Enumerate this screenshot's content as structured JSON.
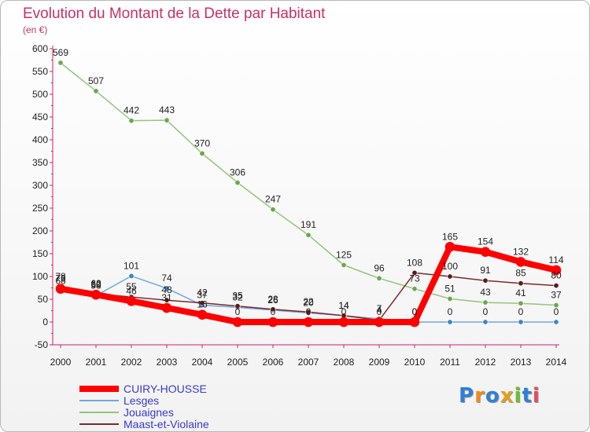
{
  "title": "Evolution du Montant de la Dette par Habitant",
  "subtitle": "(en €)",
  "logo": {
    "letters": [
      "P",
      "r",
      "o",
      "x",
      "i",
      "t",
      "i"
    ],
    "colors": [
      "#2f7fd8",
      "#f08a1c",
      "#2f7fd8",
      "#e0a020",
      "#6cbf2a",
      "#2f7fd8",
      "#e84a5f"
    ]
  },
  "chart_data": {
    "type": "line",
    "title": "Evolution du Montant de la Dette par Habitant",
    "ylabel": "(en €)",
    "xlabel": "",
    "ylim": [
      -50,
      600
    ],
    "yticks": [
      -50,
      0,
      50,
      100,
      150,
      200,
      250,
      300,
      350,
      400,
      450,
      500,
      550,
      600
    ],
    "yticks_labels": [
      "-50",
      "0",
      "50",
      "100",
      "150",
      "200",
      "250",
      "300",
      "350",
      "400",
      "450",
      "500",
      "550",
      "600"
    ],
    "x": [
      "2000",
      "2001",
      "2002",
      "2003",
      "2004",
      "2005",
      "2006",
      "2007",
      "2008",
      "2009",
      "2010",
      "2011",
      "2012",
      "2013",
      "2014"
    ],
    "grid": false,
    "legend": "bottom-left",
    "series": [
      {
        "name": "CUIRY-HOUSSE",
        "color": "#ff0000",
        "point_color": "#ff0000",
        "width": 8,
        "values": [
          73,
          60,
          46,
          31,
          16,
          0,
          0,
          0,
          0,
          0,
          0,
          165,
          154,
          132,
          114
        ],
        "labels": [
          "73",
          "60",
          "46",
          "31",
          "16",
          "0",
          "0",
          "0",
          "0",
          "0",
          "0",
          "165",
          "154",
          "132",
          "114"
        ]
      },
      {
        "name": "Lesges",
        "color": "#6fa8dc",
        "point_color": "#3d85c6",
        "width": 1.5,
        "values": [
          78,
          58,
          101,
          74,
          37,
          32,
          26,
          20,
          14,
          7,
          0,
          0,
          0,
          0,
          0
        ],
        "labels": [
          "78",
          "58",
          "101",
          "74",
          "37",
          "32",
          "26",
          "20",
          "14",
          "7",
          "0",
          "0",
          "0",
          "0",
          "0"
        ]
      },
      {
        "name": "Jouaignes",
        "color": "#93c47d",
        "point_color": "#6aa84f",
        "width": 1.5,
        "values": [
          569,
          507,
          442,
          443,
          370,
          306,
          247,
          191,
          125,
          96,
          73,
          51,
          43,
          41,
          37
        ],
        "labels": [
          "569",
          "507",
          "442",
          "443",
          "370",
          "306",
          "247",
          "191",
          "125",
          "96",
          "73",
          "51",
          "43",
          "41",
          "37"
        ]
      },
      {
        "name": "Maast-et-Violaine",
        "color": "#7b2a2a",
        "point_color": "#5c1a1a",
        "width": 1.5,
        "values": [
          68,
          62,
          55,
          48,
          42,
          35,
          28,
          22,
          14,
          4,
          108,
          100,
          91,
          85,
          80
        ],
        "labels": [
          "68",
          "62",
          "55",
          "48",
          "42",
          "35",
          "28",
          "22",
          "14",
          "4",
          "108",
          "100",
          "91",
          "85",
          "80"
        ]
      }
    ]
  }
}
